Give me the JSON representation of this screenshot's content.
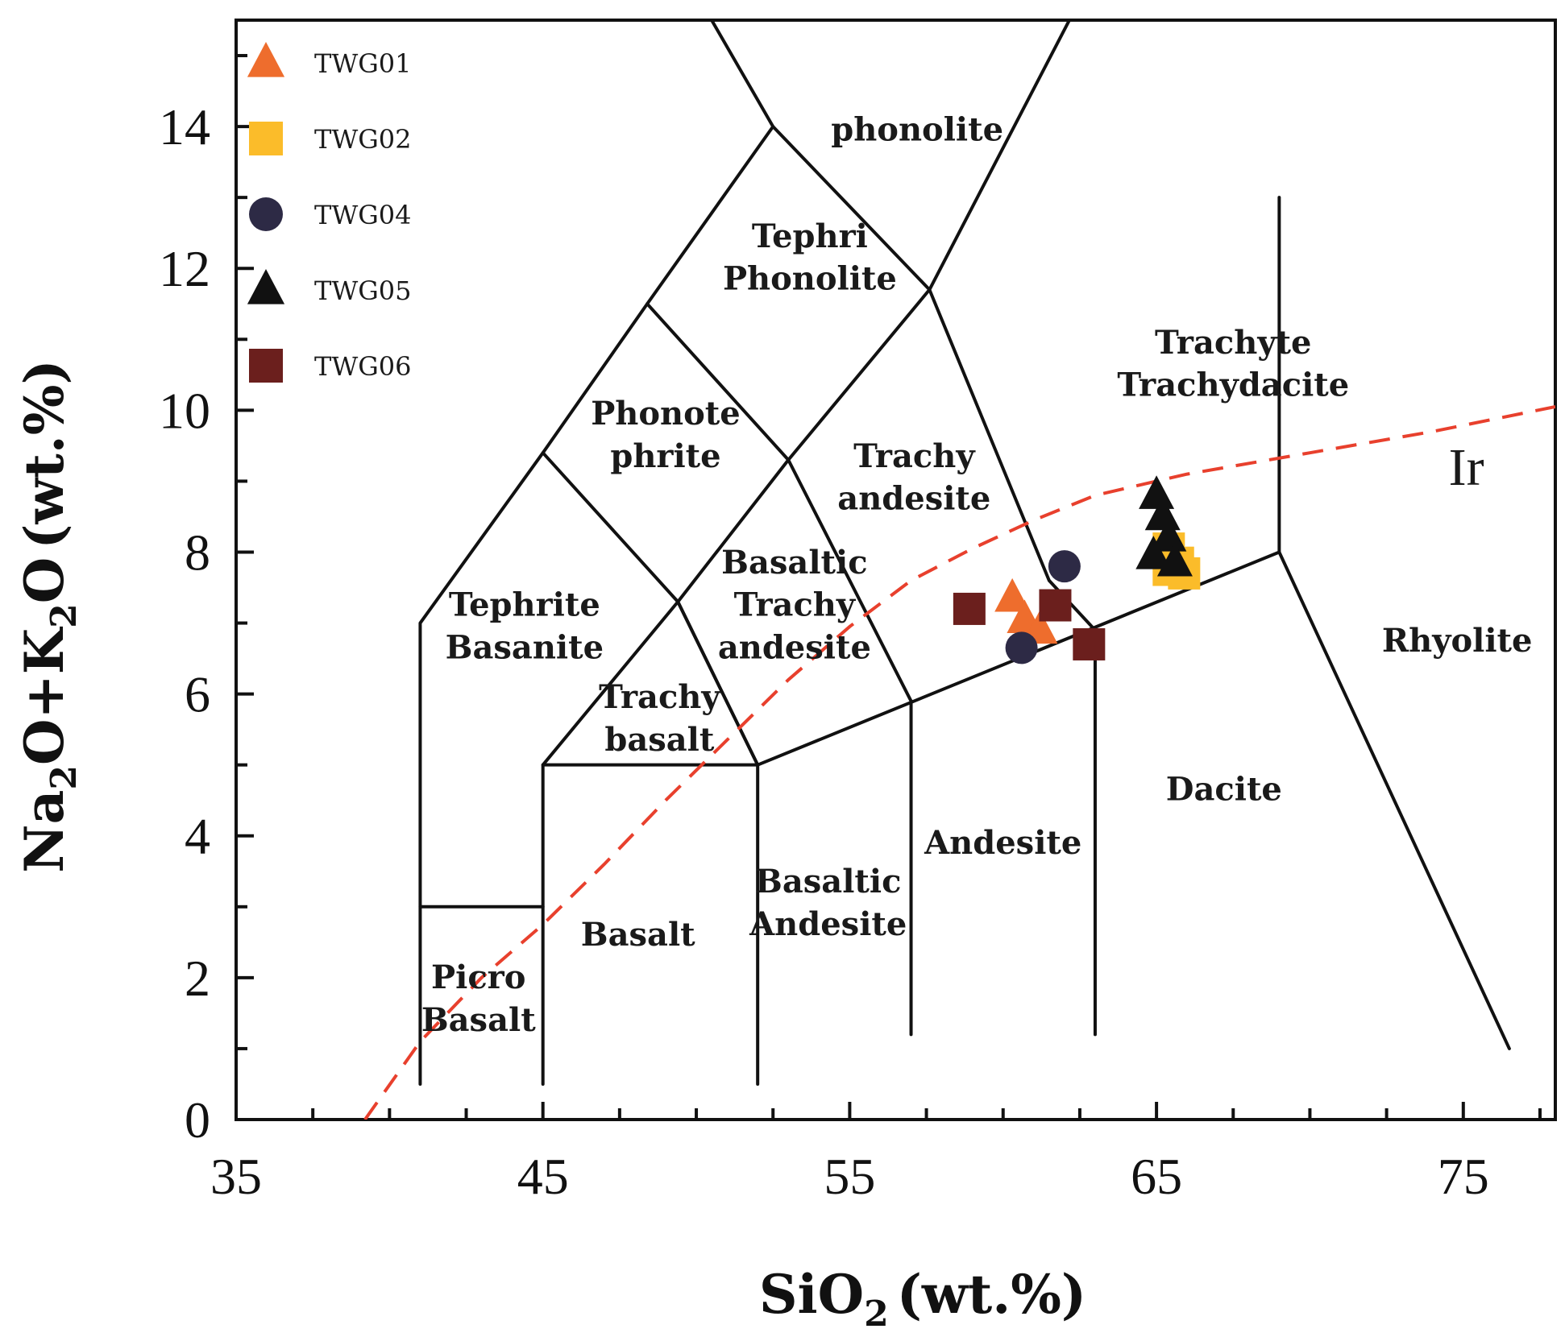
{
  "chart_data": {
    "type": "scatter",
    "title": "",
    "xlabel": "SiO2 (wt.%)",
    "ylabel": "Na2O+K2O (wt.%)",
    "xlabel_parts": {
      "base": "SiO",
      "sub": "2",
      "tail": "(wt.%)"
    },
    "ylabel_parts": {
      "a": "Na",
      "a_sub": "2",
      "b": "O+K",
      "b_sub": "2",
      "c": "O",
      "tail": "(wt.%)"
    },
    "xlim": [
      35,
      78
    ],
    "ylim": [
      0,
      15.5
    ],
    "x_ticks": [
      35,
      45,
      55,
      65,
      75
    ],
    "y_ticks": [
      0,
      2,
      4,
      6,
      8,
      10,
      12,
      14
    ],
    "legend_position": "top-left",
    "grid": false,
    "series": [
      {
        "name": "TWG01",
        "marker": "triangle",
        "color": "#ee6d2d",
        "points": [
          [
            60.3,
            7.35
          ],
          [
            60.7,
            7.05
          ],
          [
            61.2,
            6.9
          ]
        ]
      },
      {
        "name": "TWG02",
        "marker": "square",
        "color": "#fbbc2a",
        "points": [
          [
            65.4,
            8.05
          ],
          [
            65.7,
            7.85
          ],
          [
            65.4,
            7.75
          ],
          [
            65.9,
            7.7
          ]
        ]
      },
      {
        "name": "TWG04",
        "marker": "circle",
        "color": "#2d2a45",
        "points": [
          [
            62.0,
            7.8
          ],
          [
            60.6,
            6.65
          ]
        ]
      },
      {
        "name": "TWG05",
        "marker": "triangle",
        "color": "#111111",
        "points": [
          [
            65.0,
            8.8
          ],
          [
            65.2,
            8.5
          ],
          [
            65.4,
            8.2
          ],
          [
            64.9,
            7.95
          ],
          [
            65.6,
            7.85
          ]
        ]
      },
      {
        "name": "TWG06",
        "marker": "square",
        "color": "#6b1f1d",
        "points": [
          [
            58.9,
            7.2
          ],
          [
            61.7,
            7.25
          ],
          [
            62.8,
            6.7
          ]
        ]
      }
    ],
    "field_boundaries": [
      [
        [
          41,
          0.5
        ],
        [
          41,
          7
        ],
        [
          45,
          9.4
        ],
        [
          48.4,
          11.5
        ],
        [
          52.5,
          14
        ],
        [
          57.6,
          11.7
        ],
        [
          63,
          16.2
        ]
      ],
      [
        [
          41,
          3
        ],
        [
          45,
          3
        ]
      ],
      [
        [
          45,
          0.5
        ],
        [
          45,
          5
        ],
        [
          49.4,
          7.3
        ],
        [
          53,
          9.3
        ],
        [
          57.6,
          11.7
        ]
      ],
      [
        [
          52,
          0.5
        ],
        [
          52,
          5
        ],
        [
          69,
          8
        ],
        [
          69,
          13
        ]
      ],
      [
        [
          57,
          1.2
        ],
        [
          57,
          5.9
        ]
      ],
      [
        [
          63,
          1.2
        ],
        [
          63,
          6.9
        ]
      ],
      [
        [
          69,
          8
        ],
        [
          76.5,
          1
        ]
      ],
      [
        [
          45,
          5
        ],
        [
          52,
          5
        ],
        [
          49.4,
          7.3
        ]
      ],
      [
        [
          45,
          9.4
        ],
        [
          49.4,
          7.3
        ],
        [
          52,
          5
        ]
      ],
      [
        [
          48.4,
          11.5
        ],
        [
          53,
          9.3
        ],
        [
          57,
          5.9
        ]
      ],
      [
        [
          50.5,
          15.5
        ],
        [
          52.5,
          14
        ]
      ],
      [
        [
          57.6,
          11.7
        ],
        [
          61.5,
          7.6
        ],
        [
          63,
          6.9
        ]
      ]
    ],
    "alkaline_divide": {
      "label": "Ir",
      "points": [
        [
          39.2,
          0
        ],
        [
          41,
          1.1
        ],
        [
          43,
          2.0
        ],
        [
          45,
          2.75
        ],
        [
          47,
          3.6
        ],
        [
          49,
          4.5
        ],
        [
          51,
          5.35
        ],
        [
          53,
          6.2
        ],
        [
          55,
          6.95
        ],
        [
          57,
          7.6
        ],
        [
          59,
          8.05
        ],
        [
          61,
          8.45
        ],
        [
          63,
          8.8
        ],
        [
          66,
          9.1
        ],
        [
          70,
          9.4
        ],
        [
          74,
          9.7
        ],
        [
          78,
          10.05
        ]
      ]
    },
    "field_labels": [
      {
        "text": "phonolite",
        "x": 57.2,
        "y": 13.8
      },
      {
        "text": "Tephri",
        "x": 53.7,
        "y": 12.3
      },
      {
        "text": "Phonolite",
        "x": 53.7,
        "y": 11.7
      },
      {
        "text": "Trachyte",
        "x": 67.5,
        "y": 10.8
      },
      {
        "text": "Trachydacite",
        "x": 67.5,
        "y": 10.2
      },
      {
        "text": "Phonote",
        "x": 49.0,
        "y": 9.8
      },
      {
        "text": "phrite",
        "x": 49.0,
        "y": 9.2
      },
      {
        "text": "Trachy",
        "x": 57.1,
        "y": 9.2
      },
      {
        "text": "andesite",
        "x": 57.1,
        "y": 8.6
      },
      {
        "text": "Basaltic",
        "x": 53.2,
        "y": 7.7
      },
      {
        "text": "Trachy",
        "x": 53.2,
        "y": 7.1
      },
      {
        "text": "andesite",
        "x": 53.2,
        "y": 6.5
      },
      {
        "text": "Tephrite",
        "x": 44.4,
        "y": 7.1
      },
      {
        "text": "Basanite",
        "x": 44.4,
        "y": 6.5
      },
      {
        "text": "Trachy",
        "x": 48.8,
        "y": 5.8
      },
      {
        "text": "basalt",
        "x": 48.8,
        "y": 5.2
      },
      {
        "text": "Rhyolite",
        "x": 74.8,
        "y": 6.6
      },
      {
        "text": "Dacite",
        "x": 67.2,
        "y": 4.5
      },
      {
        "text": "Andesite",
        "x": 60.0,
        "y": 3.75
      },
      {
        "text": "Basaltic",
        "x": 54.3,
        "y": 3.2
      },
      {
        "text": "Andesite",
        "x": 54.3,
        "y": 2.6
      },
      {
        "text": "Basalt",
        "x": 48.1,
        "y": 2.45
      },
      {
        "text": "Picro",
        "x": 42.9,
        "y": 1.85
      },
      {
        "text": "Basalt",
        "x": 42.9,
        "y": 1.25
      }
    ]
  }
}
